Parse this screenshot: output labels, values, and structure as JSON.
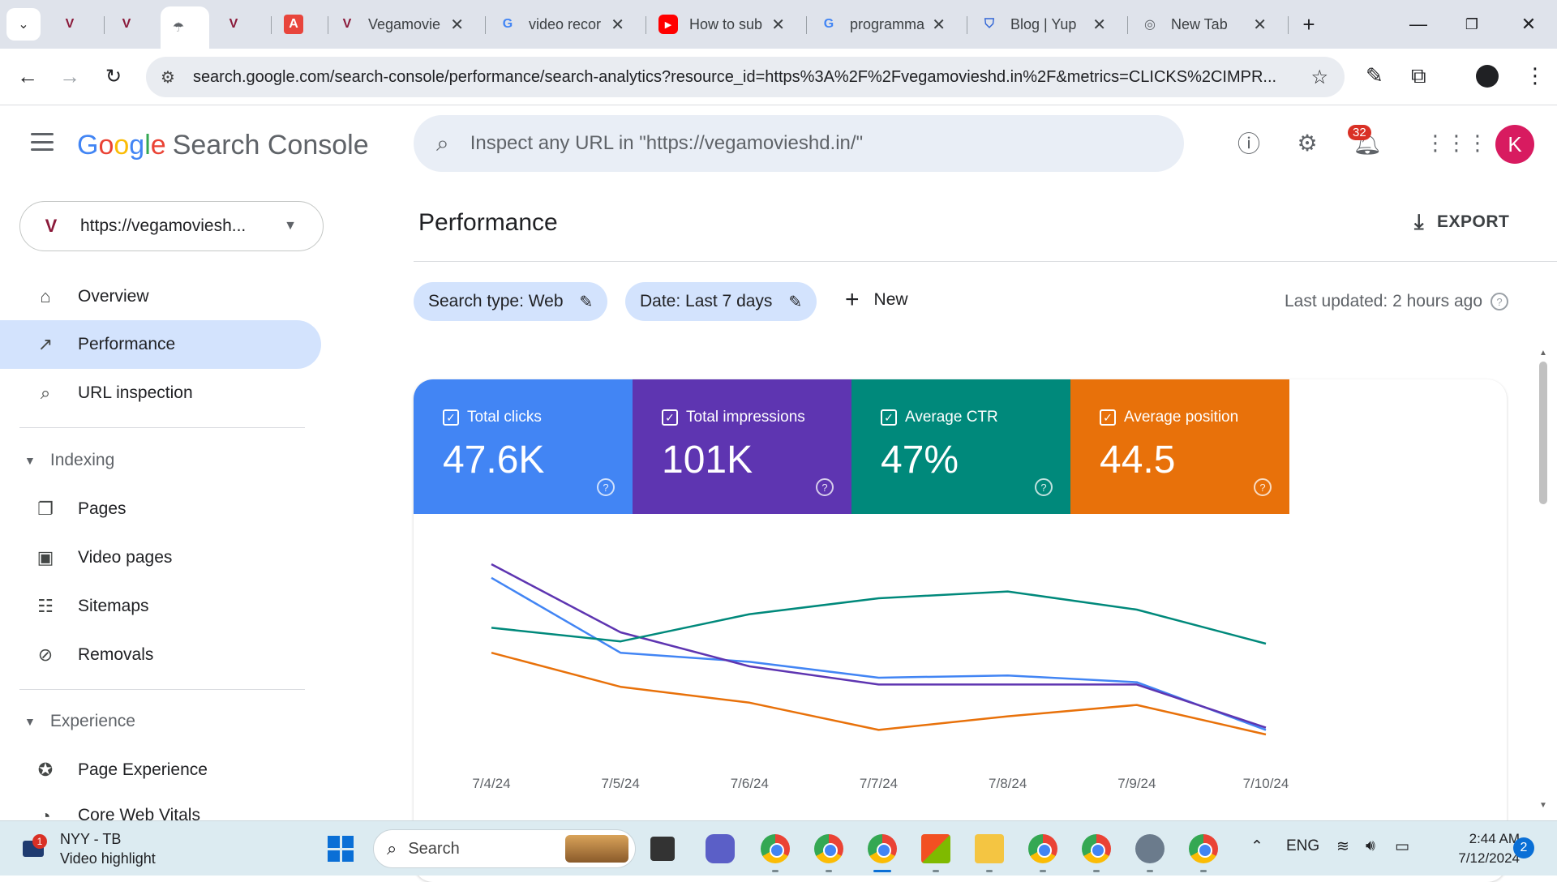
{
  "browser": {
    "tabs": [
      {
        "title": "",
        "favicon": "V",
        "favicon_color": "#8b1a3a"
      },
      {
        "title": "",
        "favicon": "V",
        "favicon_color": "#8b1a3a"
      },
      {
        "title": "",
        "favicon": "☂",
        "favicon_color": "#5f6368",
        "active": true
      },
      {
        "title": "",
        "favicon": "V",
        "favicon_color": "#8b1a3a"
      },
      {
        "title": "",
        "favicon": "A",
        "favicon_color": "#e8453c"
      },
      {
        "title": "Vegamovie",
        "favicon": "V",
        "favicon_color": "#8b1a3a"
      },
      {
        "title": "video recor",
        "favicon": "G",
        "favicon_color": "#4285f4"
      },
      {
        "title": "How to sub",
        "favicon": "▶",
        "favicon_color": "#ff0000"
      },
      {
        "title": "programma",
        "favicon": "G",
        "favicon_color": "#4285f4"
      },
      {
        "title": "Blog | Yup",
        "favicon": "⛉",
        "favicon_color": "#3367d6"
      },
      {
        "title": "New Tab",
        "favicon": "◎",
        "favicon_color": "#5f6368"
      }
    ],
    "new_tab": "+",
    "url": "search.google.com/search-console/performance/search-analytics?resource_id=https%3A%2F%2Fvegamovieshd.in%2F&metrics=CLICKS%2CIMPR..."
  },
  "header": {
    "brand_search_console": "Search Console",
    "inspect_placeholder": "Inspect any URL in \"https://vegamovieshd.in/\"",
    "notifications_count": "32",
    "avatar_letter": "K"
  },
  "sidebar": {
    "property": "https://vegamoviesh...",
    "items": [
      {
        "label": "Overview",
        "icon": "home-icon"
      },
      {
        "label": "Performance",
        "icon": "trending-up-icon",
        "active": true
      },
      {
        "label": "URL inspection",
        "icon": "search-icon"
      }
    ],
    "sections": [
      {
        "label": "Indexing",
        "items": [
          {
            "label": "Pages",
            "icon": "pages-icon"
          },
          {
            "label": "Video pages",
            "icon": "video-pages-icon"
          },
          {
            "label": "Sitemaps",
            "icon": "sitemap-icon"
          },
          {
            "label": "Removals",
            "icon": "removals-icon"
          }
        ]
      },
      {
        "label": "Experience",
        "items": [
          {
            "label": "Page Experience",
            "icon": "page-experience-icon"
          },
          {
            "label": "Core Web Vitals",
            "icon": "speed-icon"
          }
        ]
      }
    ]
  },
  "main": {
    "title": "Performance",
    "export_label": "EXPORT",
    "filters": [
      {
        "label": "Search type: Web"
      },
      {
        "label": "Date: Last 7 days"
      }
    ],
    "new_label": "New",
    "last_updated": "Last updated: 2 hours ago",
    "metrics": [
      {
        "label": "Total clicks",
        "value": "47.6K",
        "color": "#4285f4"
      },
      {
        "label": "Total impressions",
        "value": "101K",
        "color": "#5e35b1"
      },
      {
        "label": "Average CTR",
        "value": "47%",
        "color": "#00897b"
      },
      {
        "label": "Average position",
        "value": "44.5",
        "color": "#e8710a"
      }
    ]
  },
  "chart_data": {
    "type": "line",
    "x": [
      "7/4/24",
      "7/5/24",
      "7/6/24",
      "7/7/24",
      "7/8/24",
      "7/9/24",
      "7/10/24"
    ],
    "series": [
      {
        "name": "Total clicks",
        "color": "#4285f4",
        "values": [
          79,
          46,
          42,
          35,
          36,
          33,
          12
        ]
      },
      {
        "name": "Total impressions",
        "color": "#5e35b1",
        "values": [
          85,
          55,
          40,
          32,
          32,
          32,
          13
        ]
      },
      {
        "name": "Average CTR",
        "color": "#00897b",
        "values": [
          57,
          51,
          63,
          70,
          73,
          65,
          50
        ]
      },
      {
        "name": "Average position",
        "color": "#e8710a",
        "values": [
          46,
          31,
          24,
          12,
          18,
          23,
          10
        ]
      }
    ],
    "ylim": [
      0,
      100
    ],
    "grid": false,
    "note": "Normalized relative scale; Search Console hides per-metric y-axes by default."
  },
  "taskbar": {
    "weather_line1": "NYY - TB",
    "weather_line2": "Video highlight",
    "weather_badge": "1",
    "search_label": "Search",
    "language": "ENG",
    "time": "2:44 AM",
    "date": "7/12/2024",
    "notifications": "2"
  }
}
